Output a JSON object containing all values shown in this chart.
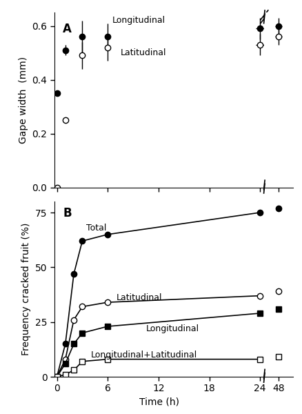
{
  "panel_A": {
    "longitudinal": {
      "x": [
        0,
        1,
        3,
        6,
        24,
        48
      ],
      "y": [
        0.35,
        0.51,
        0.56,
        0.56,
        0.59,
        0.6
      ],
      "yerr": [
        0.0,
        0.02,
        0.06,
        0.05,
        0.04,
        0.03
      ],
      "xerr": [
        0.0,
        0.0,
        0.0,
        0.0,
        0.5,
        0.5
      ],
      "label": "Longitudinal",
      "marker": "o",
      "fillstyle": "full",
      "color": "black"
    },
    "latitudinal": {
      "x": [
        0,
        1,
        3,
        6,
        24,
        48
      ],
      "y": [
        0.0,
        0.25,
        0.49,
        0.52,
        0.53,
        0.56
      ],
      "yerr": [
        0.0,
        0.01,
        0.05,
        0.05,
        0.04,
        0.03
      ],
      "xerr": [
        0.0,
        0.0,
        0.0,
        0.0,
        0.5,
        0.5
      ],
      "label": "Latitudinal",
      "marker": "o",
      "fillstyle": "none",
      "color": "black"
    },
    "ylabel": "Gape width  (mm)",
    "ylim": [
      0.0,
      0.65
    ],
    "yticks": [
      0.0,
      0.2,
      0.4,
      0.6
    ],
    "panel_label": "A"
  },
  "panel_B": {
    "total": {
      "x": [
        0,
        1,
        2,
        3,
        6,
        24,
        48
      ],
      "y": [
        0,
        15,
        47,
        62,
        65,
        75,
        77
      ],
      "label": "Total",
      "marker": "o",
      "fillstyle": "full",
      "color": "black"
    },
    "latitudinal": {
      "x": [
        0,
        1,
        2,
        3,
        6,
        24,
        48
      ],
      "y": [
        0,
        8,
        26,
        32,
        34,
        37,
        39
      ],
      "label": "Latitudinal",
      "marker": "o",
      "fillstyle": "none",
      "color": "black"
    },
    "longitudinal": {
      "x": [
        0,
        1,
        2,
        3,
        6,
        24,
        48
      ],
      "y": [
        0,
        6,
        15,
        20,
        23,
        29,
        31
      ],
      "label": "Longitudinal",
      "marker": "s",
      "fillstyle": "full",
      "color": "black"
    },
    "both": {
      "x": [
        0,
        1,
        2,
        3,
        6,
        24,
        48
      ],
      "y": [
        0,
        1,
        3,
        7,
        8,
        8,
        9
      ],
      "label": "Longitudinal+Latitudinal",
      "marker": "s",
      "fillstyle": "none",
      "color": "black"
    },
    "ylabel": "Frequency cracked fruit (%)",
    "xlabel": "Time (h)",
    "ylim": [
      0,
      80
    ],
    "yticks": [
      0,
      25,
      50,
      75
    ],
    "panel_label": "B"
  },
  "xticks_main": [
    0,
    6,
    12,
    18,
    24
  ],
  "xticks_break": [
    24,
    48
  ],
  "xlim_main": [
    -0.5,
    25.5
  ],
  "xlim_break": [
    46,
    50
  ],
  "background_color": "white",
  "axis_color": "black"
}
